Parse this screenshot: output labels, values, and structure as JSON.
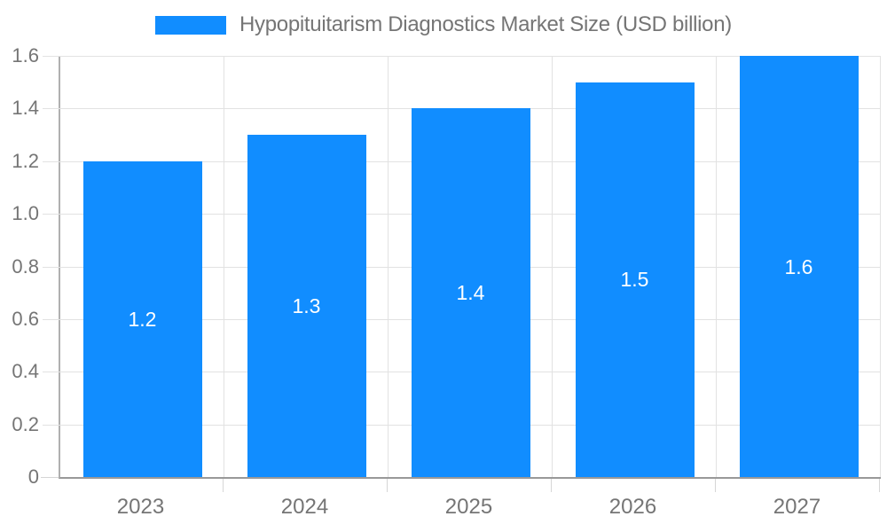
{
  "chart_data": {
    "type": "bar",
    "title": "Hypopituitarism Diagnostics Market Size (USD billion)",
    "categories": [
      "2023",
      "2024",
      "2025",
      "2026",
      "2027"
    ],
    "series": [
      {
        "name": "Hypopituitarism Diagnostics Market Size (USD billion)",
        "values": [
          1.2,
          1.3,
          1.4,
          1.5,
          1.6
        ]
      }
    ],
    "value_labels": [
      "1.2",
      "1.3",
      "1.4",
      "1.5",
      "1.6"
    ],
    "xlabel": "",
    "ylabel": "",
    "ylim": [
      0,
      1.6
    ],
    "y_ticks": [
      0,
      0.2,
      0.4,
      0.6,
      0.8,
      1.0,
      1.2,
      1.4,
      1.6
    ],
    "y_tick_labels": [
      "0",
      "0.2",
      "0.4",
      "0.6",
      "0.8",
      "1.0",
      "1.2",
      "1.4",
      "1.6"
    ],
    "grid": "horizontal and vertical category boundaries",
    "legend_position": "top-center",
    "bar_color": "#118DFF",
    "value_label_color": "#ffffff",
    "tick_label_color": "#757575",
    "gridline_color": "#e2e2e2",
    "axis_line_color": "#999999"
  }
}
